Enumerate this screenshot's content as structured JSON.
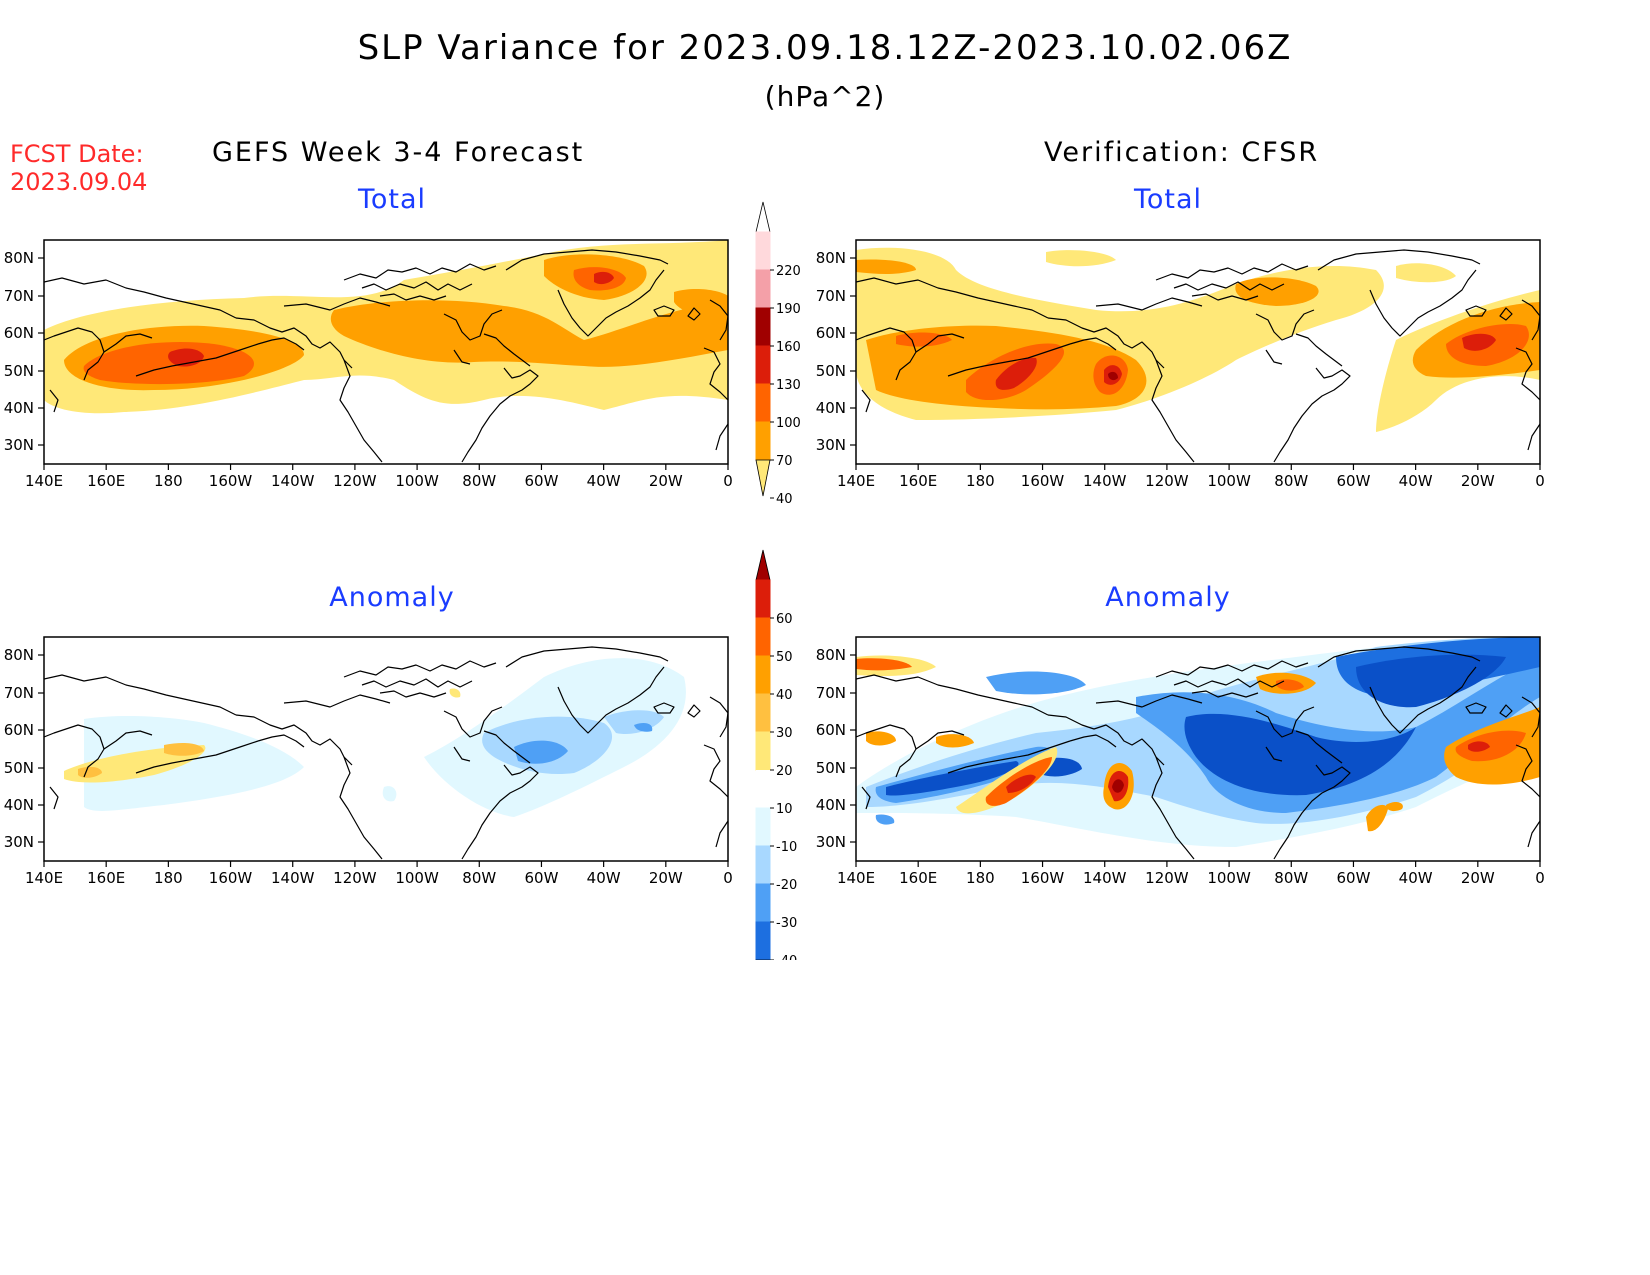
{
  "header": {
    "title": "SLP Variance for 2023.09.18.12Z-2023.10.02.06Z",
    "units": "(hPa^2)",
    "fcst_label": "FCST Date:",
    "fcst_date": "2023.09.04",
    "left_heading": "GEFS Week 3-4 Forecast",
    "right_heading": "Verification: CFSR"
  },
  "panels": {
    "fcst_total_label": "Total",
    "verif_total_label": "Total",
    "fcst_anom_label": "Anomaly",
    "verif_anom_label": "Anomaly"
  },
  "axes": {
    "lat_ticks": [
      "80N",
      "70N",
      "60N",
      "50N",
      "40N",
      "30N"
    ],
    "lon_ticks": [
      "140E",
      "160E",
      "180",
      "160W",
      "140W",
      "120W",
      "100W",
      "80W",
      "60W",
      "40W",
      "20W",
      "0"
    ]
  },
  "colorbars": {
    "total": {
      "labels": [
        "220",
        "190",
        "160",
        "130",
        "100",
        "70",
        "40"
      ],
      "colors": [
        "#ffd9dc",
        "#f4a0a8",
        "#a00000",
        "#dc1e0a",
        "#ff6400",
        "#ffa000",
        "#ffe878"
      ]
    },
    "anomaly": {
      "labels": [
        "60",
        "50",
        "40",
        "30",
        "20",
        "10",
        "-10",
        "-20",
        "-30",
        "-40"
      ],
      "colors": [
        "#a00000",
        "#dc1e0a",
        "#ff6400",
        "#ffa000",
        "#ffc040",
        "#ffe878",
        "#ffffff",
        "#e1f8ff",
        "#a8d8ff",
        "#4fa0f5",
        "#1d6fe0",
        "#0a50c8"
      ]
    }
  }
}
